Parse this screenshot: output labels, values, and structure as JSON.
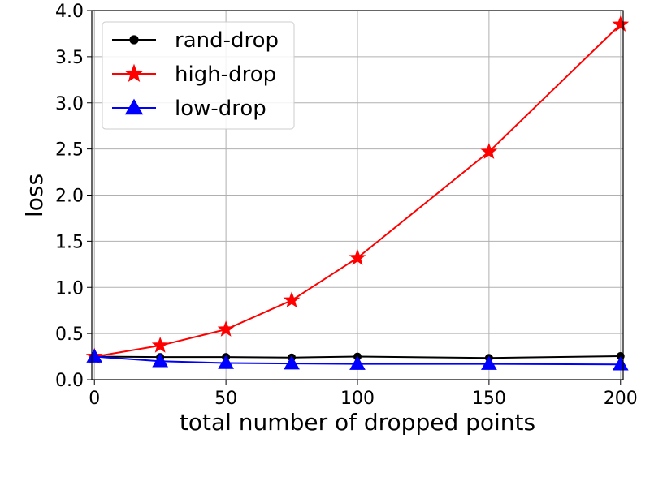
{
  "chart_data": {
    "type": "line",
    "title": "",
    "xlabel": "total number of dropped points",
    "ylabel": "loss",
    "x": [
      0,
      25,
      50,
      75,
      100,
      150,
      200
    ],
    "xlim": [
      -1,
      201
    ],
    "ylim": [
      0.0,
      4.0
    ],
    "xticks": [
      0,
      50,
      100,
      150,
      200
    ],
    "yticks": [
      "0.0",
      "0.5",
      "1.0",
      "1.5",
      "2.0",
      "2.5",
      "3.0",
      "3.5",
      "4.0"
    ],
    "grid": true,
    "legend_position": "upper-left",
    "series": [
      {
        "name": "rand-drop",
        "color": "#000000",
        "marker": "circle",
        "values": [
          0.25,
          0.245,
          0.245,
          0.24,
          0.25,
          0.235,
          0.255
        ]
      },
      {
        "name": "high-drop",
        "color": "#ff0000",
        "marker": "star",
        "values": [
          0.25,
          0.37,
          0.545,
          0.86,
          1.32,
          2.47,
          3.85
        ]
      },
      {
        "name": "low-drop",
        "color": "#0000ff",
        "marker": "triangle",
        "values": [
          0.25,
          0.2,
          0.18,
          0.175,
          0.17,
          0.17,
          0.165
        ]
      }
    ]
  }
}
